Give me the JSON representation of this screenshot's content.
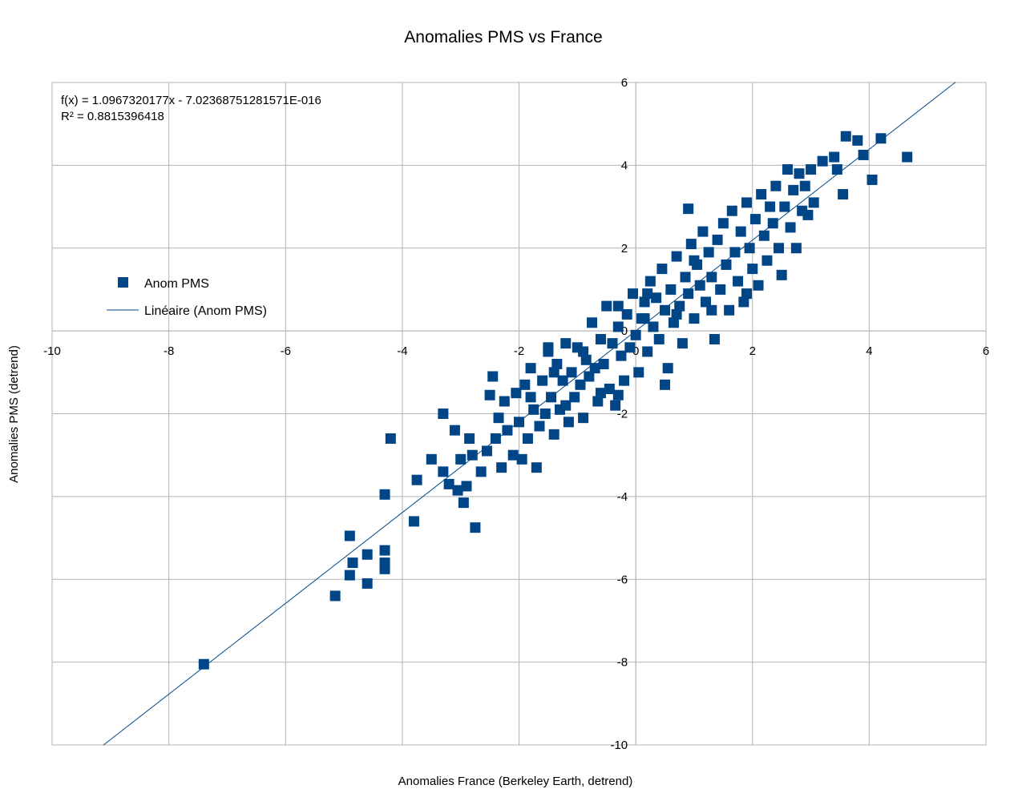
{
  "chart_data": {
    "type": "scatter",
    "title": "Anomalies PMS vs France",
    "xlabel": "Anomalies France (Berkeley Earth, detrend)",
    "ylabel": "Anomalies PMS (detrend)",
    "xlim": [
      -10,
      6
    ],
    "ylim": [
      -10,
      6
    ],
    "x_ticks": [
      "-10",
      "-8",
      "-6",
      "-4",
      "-2",
      "0",
      "2",
      "4",
      "6"
    ],
    "y_ticks": [
      "-10",
      "-8",
      "-6",
      "-4",
      "-2",
      "0",
      "2",
      "4",
      "6"
    ],
    "grid": true,
    "legend_position": "left",
    "colors": {
      "marker": "#004586",
      "trendline": "#004586",
      "grid": "#b3b3b3",
      "axis": "#b3b3b3"
    },
    "series": [
      {
        "name": "Anom PMS",
        "marker": "square",
        "points": [
          [
            -7.4,
            -8.05
          ],
          [
            -5.15,
            -6.4
          ],
          [
            -4.9,
            -5.9
          ],
          [
            -4.85,
            -5.6
          ],
          [
            -4.9,
            -4.95
          ],
          [
            -4.6,
            -6.1
          ],
          [
            -4.6,
            -5.4
          ],
          [
            -4.3,
            -5.6
          ],
          [
            -4.3,
            -5.75
          ],
          [
            -4.3,
            -5.3
          ],
          [
            -4.3,
            -3.95
          ],
          [
            -4.2,
            -2.6
          ],
          [
            -3.8,
            -4.6
          ],
          [
            -3.75,
            -3.6
          ],
          [
            -3.5,
            -3.1
          ],
          [
            -3.3,
            -2.0
          ],
          [
            -3.3,
            -3.4
          ],
          [
            -3.2,
            -3.7
          ],
          [
            -3.1,
            -2.4
          ],
          [
            -3.05,
            -3.85
          ],
          [
            -3.0,
            -3.1
          ],
          [
            -2.95,
            -4.15
          ],
          [
            -2.9,
            -3.75
          ],
          [
            -2.85,
            -2.6
          ],
          [
            -2.8,
            -3.0
          ],
          [
            -2.75,
            -4.75
          ],
          [
            -2.65,
            -3.4
          ],
          [
            -2.55,
            -2.9
          ],
          [
            -2.5,
            -1.55
          ],
          [
            -2.45,
            -1.1
          ],
          [
            -2.4,
            -2.6
          ],
          [
            -2.35,
            -2.1
          ],
          [
            -2.3,
            -3.3
          ],
          [
            -2.25,
            -1.7
          ],
          [
            -2.2,
            -2.4
          ],
          [
            -2.1,
            -3.0
          ],
          [
            -2.05,
            -1.5
          ],
          [
            -2.0,
            -2.2
          ],
          [
            -1.95,
            -3.1
          ],
          [
            -1.9,
            -1.3
          ],
          [
            -1.85,
            -2.6
          ],
          [
            -1.8,
            -0.9
          ],
          [
            -1.75,
            -1.9
          ],
          [
            -1.7,
            -3.3
          ],
          [
            -1.65,
            -2.3
          ],
          [
            -1.6,
            -1.2
          ],
          [
            -1.55,
            -2.0
          ],
          [
            -1.5,
            -0.5
          ],
          [
            -1.45,
            -1.6
          ],
          [
            -1.4,
            -2.5
          ],
          [
            -1.35,
            -0.8
          ],
          [
            -1.3,
            -1.9
          ],
          [
            -1.25,
            -1.2
          ],
          [
            -1.2,
            -0.3
          ],
          [
            -1.15,
            -2.2
          ],
          [
            -1.1,
            -1.0
          ],
          [
            -1.05,
            -1.6
          ],
          [
            -1.0,
            -0.4
          ],
          [
            -0.95,
            -1.3
          ],
          [
            -0.9,
            -2.1
          ],
          [
            -0.85,
            -0.7
          ],
          [
            -0.8,
            -1.1
          ],
          [
            -0.75,
            0.2
          ],
          [
            -0.7,
            -0.9
          ],
          [
            -0.65,
            -1.7
          ],
          [
            -0.6,
            -0.2
          ],
          [
            -0.55,
            -0.8
          ],
          [
            -0.5,
            0.6
          ],
          [
            -0.45,
            -1.4
          ],
          [
            -0.4,
            -0.3
          ],
          [
            -0.35,
            -1.8
          ],
          [
            -0.3,
            0.1
          ],
          [
            -0.25,
            -0.6
          ],
          [
            -0.2,
            -1.2
          ],
          [
            -0.15,
            0.4
          ],
          [
            -0.1,
            -0.4
          ],
          [
            -0.05,
            0.9
          ],
          [
            0.0,
            -0.1
          ],
          [
            0.05,
            -1.0
          ],
          [
            0.1,
            0.3
          ],
          [
            0.15,
            0.7
          ],
          [
            0.2,
            -0.5
          ],
          [
            0.25,
            1.2
          ],
          [
            0.3,
            0.1
          ],
          [
            0.35,
            0.8
          ],
          [
            0.4,
            -0.2
          ],
          [
            0.45,
            1.5
          ],
          [
            0.5,
            0.5
          ],
          [
            0.55,
            -0.9
          ],
          [
            0.6,
            1.0
          ],
          [
            0.65,
            0.2
          ],
          [
            0.7,
            1.8
          ],
          [
            0.75,
            0.6
          ],
          [
            0.8,
            -0.3
          ],
          [
            0.85,
            1.3
          ],
          [
            0.9,
            0.9
          ],
          [
            0.95,
            2.1
          ],
          [
            1.0,
            0.3
          ],
          [
            1.05,
            1.6
          ],
          [
            1.1,
            1.1
          ],
          [
            1.15,
            2.4
          ],
          [
            1.2,
            0.7
          ],
          [
            1.25,
            1.9
          ],
          [
            1.3,
            1.3
          ],
          [
            1.35,
            -0.2
          ],
          [
            1.4,
            2.2
          ],
          [
            1.45,
            1.0
          ],
          [
            1.5,
            2.6
          ],
          [
            1.55,
            1.6
          ],
          [
            1.6,
            0.5
          ],
          [
            1.65,
            2.9
          ],
          [
            1.7,
            1.9
          ],
          [
            1.75,
            1.2
          ],
          [
            1.8,
            2.4
          ],
          [
            1.85,
            0.7
          ],
          [
            1.9,
            3.1
          ],
          [
            1.95,
            2.0
          ],
          [
            2.0,
            1.5
          ],
          [
            2.05,
            2.7
          ],
          [
            2.1,
            1.1
          ],
          [
            2.15,
            3.3
          ],
          [
            2.2,
            2.3
          ],
          [
            2.25,
            1.7
          ],
          [
            2.3,
            3.0
          ],
          [
            2.35,
            2.6
          ],
          [
            2.4,
            3.5
          ],
          [
            2.45,
            2.0
          ],
          [
            2.5,
            1.35
          ],
          [
            2.55,
            3.0
          ],
          [
            2.6,
            3.9
          ],
          [
            2.65,
            2.5
          ],
          [
            2.7,
            3.4
          ],
          [
            2.75,
            2.0
          ],
          [
            2.8,
            3.8
          ],
          [
            2.85,
            2.9
          ],
          [
            2.9,
            3.5
          ],
          [
            2.95,
            2.8
          ],
          [
            3.0,
            3.9
          ],
          [
            3.05,
            3.1
          ],
          [
            3.2,
            4.1
          ],
          [
            3.4,
            4.2
          ],
          [
            3.45,
            3.9
          ],
          [
            3.55,
            3.3
          ],
          [
            3.6,
            4.7
          ],
          [
            3.8,
            4.6
          ],
          [
            3.9,
            4.25
          ],
          [
            4.05,
            3.65
          ],
          [
            4.2,
            4.65
          ],
          [
            4.65,
            4.2
          ],
          [
            -0.3,
            -1.55
          ],
          [
            0.5,
            -1.3
          ],
          [
            -1.8,
            -1.6
          ],
          [
            -1.2,
            -1.8
          ],
          [
            -0.6,
            -1.5
          ],
          [
            -1.4,
            -1.0
          ],
          [
            -0.9,
            -0.5
          ],
          [
            0.2,
            0.9
          ],
          [
            0.7,
            0.4
          ],
          [
            1.0,
            1.7
          ],
          [
            1.3,
            0.5
          ],
          [
            0.9,
            2.95
          ],
          [
            0.15,
            0.3
          ],
          [
            -0.3,
            0.6
          ],
          [
            -1.5,
            -0.4
          ],
          [
            1.9,
            0.9
          ]
        ]
      }
    ],
    "trendline": {
      "name": "Linéaire (Anom PMS)",
      "equation": "f(x) = 1.0967320177x - 7.02368751281571E-016",
      "r_squared": "R² = 0.8815396418",
      "slope": 1.0967320177,
      "intercept": -7.02368751281571e-16,
      "x_range": [
        -9.12,
        5.48
      ]
    }
  }
}
